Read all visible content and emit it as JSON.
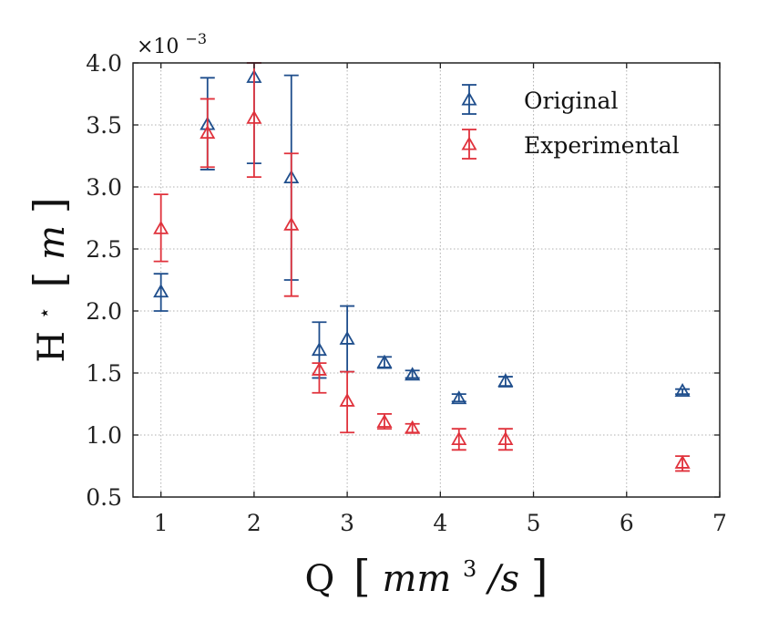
{
  "chart_data": {
    "type": "scatter",
    "title": "",
    "xlabel": {
      "base": "Q",
      "unit_main": "mm",
      "unit_exp": "3",
      "unit_tail": "/s"
    },
    "ylabel": {
      "base": "H",
      "mark": "⋆",
      "unit": "m"
    },
    "scale_factor": {
      "base": "×10",
      "exp": "−3"
    },
    "xlim": [
      0.7,
      7
    ],
    "ylim": [
      0.5,
      4.0
    ],
    "xticks": [
      1,
      2,
      3,
      4,
      5,
      6,
      7
    ],
    "yticks": [
      0.5,
      1.0,
      1.5,
      2.0,
      2.5,
      3.0,
      3.5,
      4.0
    ],
    "xtick_labels": [
      "1",
      "2",
      "3",
      "4",
      "5",
      "6",
      "7"
    ],
    "ytick_labels": [
      "0.5",
      "1.0",
      "1.5",
      "2.0",
      "2.5",
      "3.0",
      "3.5",
      "4.0"
    ],
    "grid": true,
    "legend_position": "top-right",
    "marker": "triangle-open",
    "series": [
      {
        "name": "Original",
        "color": "#1f4e8c",
        "points": [
          {
            "x": 1.0,
            "y": 2.15,
            "lo": 2.0,
            "hi": 2.3
          },
          {
            "x": 1.5,
            "y": 3.5,
            "lo": 3.14,
            "hi": 3.88
          },
          {
            "x": 2.0,
            "y": 3.88,
            "lo": 3.19,
            "hi": 4.0
          },
          {
            "x": 2.4,
            "y": 3.07,
            "lo": 2.25,
            "hi": 3.9
          },
          {
            "x": 2.7,
            "y": 1.68,
            "lo": 1.46,
            "hi": 1.91
          },
          {
            "x": 3.0,
            "y": 1.77,
            "lo": 1.51,
            "hi": 2.04
          },
          {
            "x": 3.4,
            "y": 1.58,
            "lo": 1.54,
            "hi": 1.63
          },
          {
            "x": 3.7,
            "y": 1.48,
            "lo": 1.46,
            "hi": 1.52
          },
          {
            "x": 4.2,
            "y": 1.29,
            "lo": 1.27,
            "hi": 1.33
          },
          {
            "x": 4.7,
            "y": 1.43,
            "lo": 1.39,
            "hi": 1.47
          },
          {
            "x": 6.6,
            "y": 1.35,
            "lo": 1.33,
            "hi": 1.37
          }
        ]
      },
      {
        "name": "Experimental",
        "color": "#e0323c",
        "points": [
          {
            "x": 1.0,
            "y": 2.66,
            "lo": 2.4,
            "hi": 2.94
          },
          {
            "x": 1.5,
            "y": 3.43,
            "lo": 3.16,
            "hi": 3.71
          },
          {
            "x": 2.0,
            "y": 3.55,
            "lo": 3.08,
            "hi": 4.0
          },
          {
            "x": 2.4,
            "y": 2.69,
            "lo": 2.12,
            "hi": 3.27
          },
          {
            "x": 2.7,
            "y": 1.52,
            "lo": 1.34,
            "hi": 1.58
          },
          {
            "x": 3.0,
            "y": 1.27,
            "lo": 1.02,
            "hi": 1.51
          },
          {
            "x": 3.4,
            "y": 1.1,
            "lo": 1.05,
            "hi": 1.17
          },
          {
            "x": 3.7,
            "y": 1.05,
            "lo": 1.02,
            "hi": 1.09
          },
          {
            "x": 4.2,
            "y": 0.96,
            "lo": 0.88,
            "hi": 1.05
          },
          {
            "x": 4.7,
            "y": 0.96,
            "lo": 0.88,
            "hi": 1.05
          },
          {
            "x": 6.6,
            "y": 0.77,
            "lo": 0.71,
            "hi": 0.83
          }
        ]
      }
    ]
  }
}
